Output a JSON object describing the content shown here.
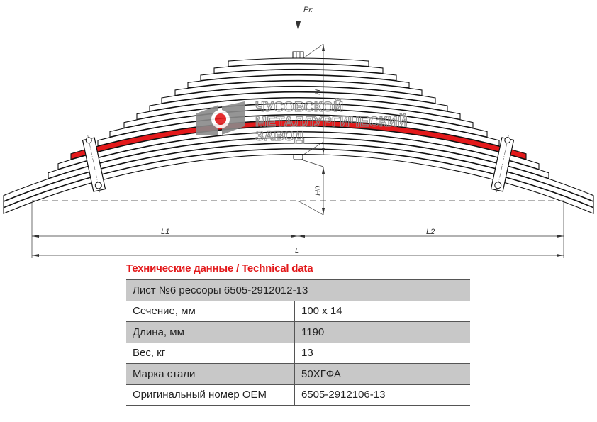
{
  "drawing": {
    "load_label": "Pк",
    "height_label": "H",
    "free_height_label": "H0",
    "left_length_label": "L1",
    "right_length_label": "L2",
    "total_length_label": "L",
    "highlighted_leaf_color": "#e3191b",
    "watermark": {
      "lines": [
        "ЧУСОВСКОЙ",
        "МЕТАЛЛУРГИЧЕСКИЙ",
        "ЗАВОД"
      ],
      "color": "#8a8a8a",
      "accent": "#e3191b"
    }
  },
  "table": {
    "title": "Технические данные / Technical data",
    "header": "Лист №6 рессоры 6505-2912012-13",
    "rows": [
      {
        "label": "Сечение, мм",
        "value": "100 x 14"
      },
      {
        "label": "Длина, мм",
        "value": "1190"
      },
      {
        "label": "Вес, кг",
        "value": "13"
      },
      {
        "label": "Марка стали",
        "value": "50ХГФА"
      },
      {
        "label": "Оригинальный номер OEM",
        "value": "6505-2912106-13"
      }
    ],
    "stripe_color": "#c8c8c8",
    "title_color": "#e3191b"
  }
}
